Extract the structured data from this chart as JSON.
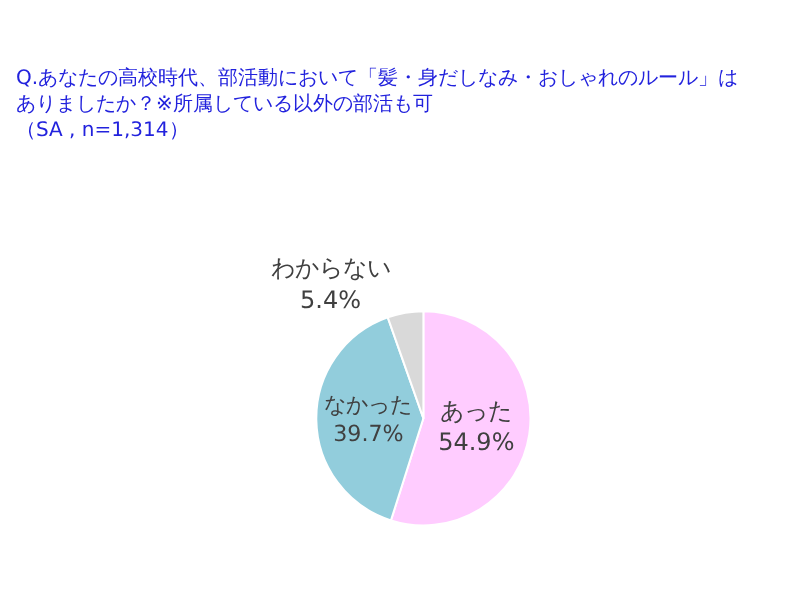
{
  "chart_data": {
    "type": "pie",
    "title": "Q.あなたの高校時代、部活動において「髪・身だしなみ・おしゃれのルール」はありましたか？※所属している以外の部活も可",
    "subtitle": "（SA , n=1,314）",
    "categories": [
      "あった",
      "なかった",
      "わからない"
    ],
    "values": [
      54.9,
      39.7,
      5.4
    ],
    "value_labels": [
      "54.9%",
      "39.7%",
      "5.4%"
    ],
    "colors": [
      "#ffccff",
      "#92cddc",
      "#d9d9d9"
    ],
    "legend": false
  }
}
